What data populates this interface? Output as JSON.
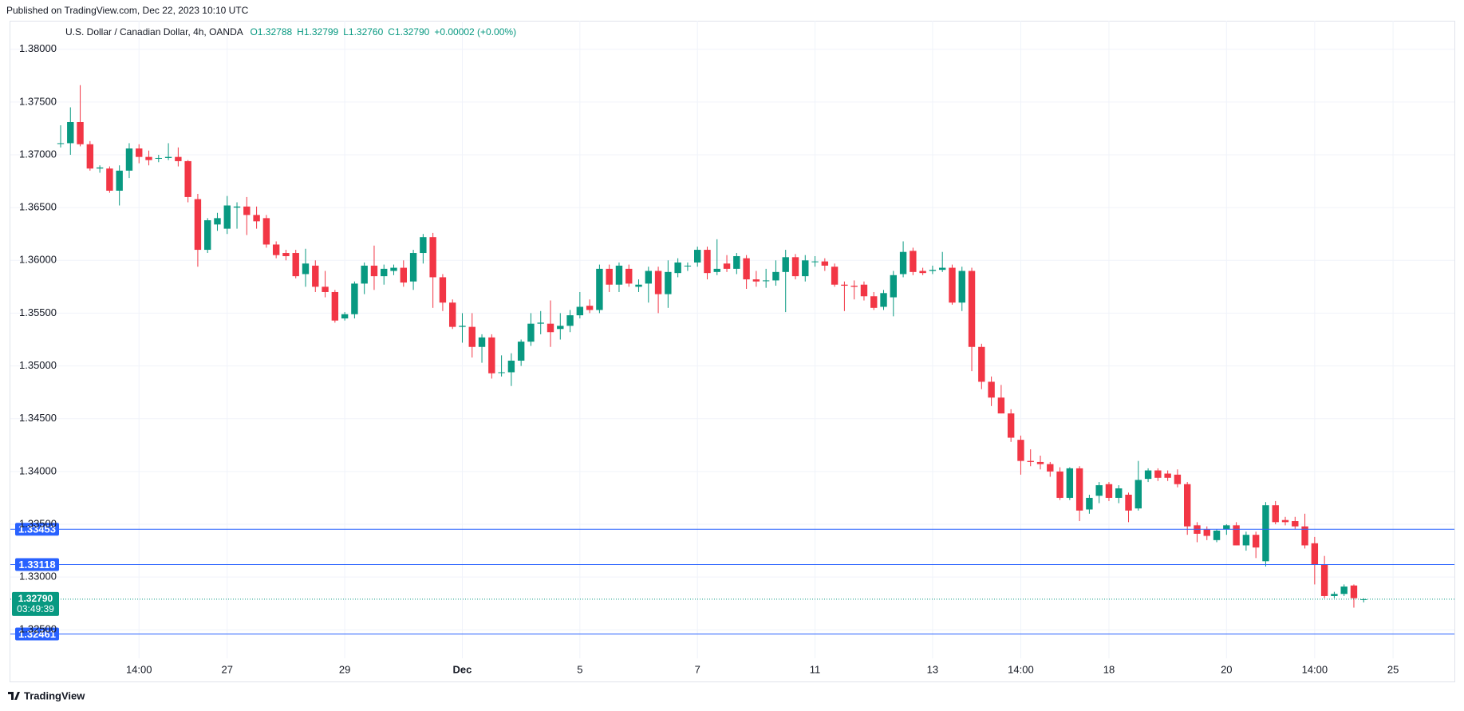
{
  "chart_data": {
    "type": "candlestick",
    "published": "Published on TradingView.com, Dec 22, 2023 10:10 UTC",
    "symbol": "U.S. Dollar / Canadian Dollar, 4h, OANDA",
    "ohlc_header": [
      "O1.32788",
      "H1.32799",
      "L1.32760",
      "C1.32790",
      "+0.00002 (+0.00%)"
    ],
    "brand": "TradingView",
    "up_color": "#089981",
    "down_color": "#f23645",
    "grid": true,
    "ylim": [
      1.3223,
      1.3827
    ],
    "yticks": [
      {
        "value": 1.38,
        "label": "1.38000"
      },
      {
        "value": 1.375,
        "label": "1.37500"
      },
      {
        "value": 1.37,
        "label": "1.37000"
      },
      {
        "value": 1.365,
        "label": "1.36500"
      },
      {
        "value": 1.36,
        "label": "1.36000"
      },
      {
        "value": 1.355,
        "label": "1.35500"
      },
      {
        "value": 1.35,
        "label": "1.35000"
      },
      {
        "value": 1.345,
        "label": "1.34500"
      },
      {
        "value": 1.34,
        "label": "1.34000"
      },
      {
        "value": 1.335,
        "label": "1.33500"
      },
      {
        "value": 1.33,
        "label": "1.33000"
      },
      {
        "value": 1.325,
        "label": "1.32500"
      }
    ],
    "price_lines": [
      {
        "value": 1.33453,
        "label": "1.33453",
        "color": "#2962ff"
      },
      {
        "value": 1.33118,
        "label": "1.33118",
        "color": "#2962ff"
      },
      {
        "value": 1.32461,
        "label": "1.32461",
        "color": "#2962ff"
      }
    ],
    "last_price": {
      "value": 1.3279,
      "label": "1.32790",
      "countdown": "03:49:39",
      "color": "#089981"
    },
    "categories": [
      null,
      null,
      null,
      null,
      null,
      null,
      null,
      null,
      "14:00",
      null,
      null,
      null,
      null,
      null,
      null,
      null,
      null,
      "27",
      null,
      null,
      null,
      null,
      null,
      null,
      null,
      null,
      null,
      null,
      null,
      "29",
      null,
      null,
      null,
      null,
      null,
      null,
      null,
      null,
      null,
      null,
      null,
      "Dec",
      null,
      null,
      null,
      null,
      null,
      null,
      null,
      null,
      null,
      null,
      null,
      "5",
      null,
      null,
      null,
      null,
      null,
      null,
      null,
      null,
      null,
      null,
      null,
      "7",
      null,
      null,
      null,
      null,
      null,
      null,
      null,
      null,
      null,
      null,
      null,
      "11",
      null,
      null,
      null,
      null,
      null,
      null,
      null,
      null,
      null,
      null,
      null,
      "13",
      null,
      null,
      null,
      null,
      null,
      null,
      null,
      null,
      "14:00",
      null,
      null,
      null,
      null,
      null,
      null,
      null,
      null,
      "18",
      null,
      null,
      null,
      null,
      null,
      null,
      null,
      null,
      null,
      null,
      null,
      "20",
      null,
      null,
      null,
      null,
      null,
      null,
      null,
      null,
      "14:00",
      null,
      null,
      null,
      null,
      null,
      null,
      null,
      "25",
      null
    ],
    "ohlc": [
      [
        1.3711,
        1.3728,
        1.3707,
        1.3711
      ],
      [
        1.3711,
        1.3745,
        1.37,
        1.3731
      ],
      [
        1.3731,
        1.3766,
        1.3708,
        1.371
      ],
      [
        1.371,
        1.3713,
        1.3685,
        1.3687
      ],
      [
        1.3687,
        1.369,
        1.3683,
        1.3688
      ],
      [
        1.3687,
        1.3689,
        1.3664,
        1.3666
      ],
      [
        1.3666,
        1.369,
        1.3652,
        1.3685
      ],
      [
        1.3685,
        1.3711,
        1.3678,
        1.3706
      ],
      [
        1.3706,
        1.371,
        1.3692,
        1.3698
      ],
      [
        1.3698,
        1.3704,
        1.369,
        1.3695
      ],
      [
        1.3697,
        1.37,
        1.3693,
        1.3697
      ],
      [
        1.3697,
        1.3711,
        1.3695,
        1.3698
      ],
      [
        1.3698,
        1.3707,
        1.3689,
        1.3694
      ],
      [
        1.3694,
        1.3695,
        1.3655,
        1.366
      ],
      [
        1.3658,
        1.3663,
        1.3594,
        1.361
      ],
      [
        1.361,
        1.364,
        1.3607,
        1.3638
      ],
      [
        1.3634,
        1.3645,
        1.3628,
        1.364
      ],
      [
        1.363,
        1.3661,
        1.3625,
        1.3652
      ],
      [
        1.365,
        1.3655,
        1.363,
        1.3651
      ],
      [
        1.3651,
        1.366,
        1.3624,
        1.3643
      ],
      [
        1.3643,
        1.3651,
        1.363,
        1.3637
      ],
      [
        1.364,
        1.3643,
        1.3612,
        1.3615
      ],
      [
        1.3615,
        1.3618,
        1.3602,
        1.3605
      ],
      [
        1.3607,
        1.361,
        1.36,
        1.3604
      ],
      [
        1.3607,
        1.361,
        1.3583,
        1.3585
      ],
      [
        1.3587,
        1.3611,
        1.3575,
        1.3597
      ],
      [
        1.3595,
        1.36,
        1.357,
        1.3575
      ],
      [
        1.3575,
        1.359,
        1.3565,
        1.357
      ],
      [
        1.357,
        1.3572,
        1.3541,
        1.3543
      ],
      [
        1.3545,
        1.3551,
        1.3543,
        1.3549
      ],
      [
        1.3549,
        1.358,
        1.3545,
        1.3578
      ],
      [
        1.3578,
        1.3598,
        1.3568,
        1.3595
      ],
      [
        1.3595,
        1.3614,
        1.3572,
        1.3585
      ],
      [
        1.3585,
        1.3596,
        1.3577,
        1.3592
      ],
      [
        1.359,
        1.3596,
        1.3586,
        1.3593
      ],
      [
        1.3593,
        1.36,
        1.3575,
        1.3579
      ],
      [
        1.358,
        1.361,
        1.3572,
        1.3607
      ],
      [
        1.3607,
        1.3625,
        1.3597,
        1.3622
      ],
      [
        1.3622,
        1.3626,
        1.3555,
        1.3584
      ],
      [
        1.3584,
        1.3587,
        1.3552,
        1.356
      ],
      [
        1.356,
        1.3563,
        1.3535,
        1.3537
      ],
      [
        1.3537,
        1.355,
        1.3522,
        1.3538
      ],
      [
        1.3537,
        1.355,
        1.3508,
        1.3518
      ],
      [
        1.3518,
        1.353,
        1.3503,
        1.3527
      ],
      [
        1.3527,
        1.353,
        1.3488,
        1.3493
      ],
      [
        1.3494,
        1.351,
        1.349,
        1.3494
      ],
      [
        1.3494,
        1.3512,
        1.3481,
        1.3505
      ],
      [
        1.3505,
        1.3525,
        1.35,
        1.3523
      ],
      [
        1.3523,
        1.355,
        1.3519,
        1.354
      ],
      [
        1.354,
        1.3552,
        1.353,
        1.3541
      ],
      [
        1.354,
        1.3562,
        1.3518,
        1.3532
      ],
      [
        1.3535,
        1.355,
        1.3525,
        1.3538
      ],
      [
        1.3538,
        1.3553,
        1.3532,
        1.3548
      ],
      [
        1.3548,
        1.357,
        1.3545,
        1.3556
      ],
      [
        1.3557,
        1.3563,
        1.355,
        1.3553
      ],
      [
        1.3553,
        1.3596,
        1.355,
        1.3592
      ],
      [
        1.3592,
        1.3596,
        1.357,
        1.3577
      ],
      [
        1.3577,
        1.3598,
        1.357,
        1.3595
      ],
      [
        1.3592,
        1.3596,
        1.3575,
        1.3578
      ],
      [
        1.3575,
        1.3582,
        1.357,
        1.3577
      ],
      [
        1.3578,
        1.3594,
        1.356,
        1.359
      ],
      [
        1.359,
        1.3594,
        1.355,
        1.3568
      ],
      [
        1.3568,
        1.36,
        1.3555,
        1.3589
      ],
      [
        1.3588,
        1.3602,
        1.3584,
        1.3598
      ],
      [
        1.3595,
        1.3598,
        1.359,
        1.3595
      ],
      [
        1.3598,
        1.3613,
        1.3594,
        1.361
      ],
      [
        1.361,
        1.3613,
        1.3582,
        1.3588
      ],
      [
        1.3589,
        1.362,
        1.3586,
        1.3592
      ],
      [
        1.3597,
        1.3605,
        1.3589,
        1.3592
      ],
      [
        1.3592,
        1.3607,
        1.3587,
        1.3604
      ],
      [
        1.3602,
        1.3605,
        1.3573,
        1.3582
      ],
      [
        1.3582,
        1.359,
        1.3575,
        1.358
      ],
      [
        1.3581,
        1.3592,
        1.3574,
        1.3581
      ],
      [
        1.3581,
        1.36,
        1.3576,
        1.3589
      ],
      [
        1.3589,
        1.361,
        1.3551,
        1.3603
      ],
      [
        1.3603,
        1.3606,
        1.3582,
        1.3585
      ],
      [
        1.3585,
        1.3605,
        1.358,
        1.36
      ],
      [
        1.3599,
        1.3604,
        1.3594,
        1.3599
      ],
      [
        1.3599,
        1.3602,
        1.359,
        1.3595
      ],
      [
        1.3594,
        1.3597,
        1.3575,
        1.3577
      ],
      [
        1.3577,
        1.358,
        1.3552,
        1.3576
      ],
      [
        1.3576,
        1.3581,
        1.3563,
        1.3575
      ],
      [
        1.3577,
        1.358,
        1.3562,
        1.3566
      ],
      [
        1.3566,
        1.357,
        1.3553,
        1.3555
      ],
      [
        1.3556,
        1.3572,
        1.3553,
        1.3569
      ],
      [
        1.3565,
        1.359,
        1.3547,
        1.3586
      ],
      [
        1.3587,
        1.3618,
        1.3584,
        1.3608
      ],
      [
        1.3609,
        1.3612,
        1.3586,
        1.3589
      ],
      [
        1.359,
        1.3593,
        1.3586,
        1.3588
      ],
      [
        1.359,
        1.3595,
        1.3587,
        1.3591
      ],
      [
        1.3591,
        1.3608,
        1.3589,
        1.3593
      ],
      [
        1.3593,
        1.3596,
        1.3558,
        1.356
      ],
      [
        1.356,
        1.3594,
        1.3552,
        1.359
      ],
      [
        1.359,
        1.3593,
        1.3495,
        1.3518
      ],
      [
        1.3518,
        1.3521,
        1.3478,
        1.3485
      ],
      [
        1.3485,
        1.349,
        1.3462,
        1.347
      ],
      [
        1.347,
        1.3482,
        1.3455,
        1.3455
      ],
      [
        1.3455,
        1.3459,
        1.3428,
        1.3432
      ],
      [
        1.343,
        1.3434,
        1.3397,
        1.341
      ],
      [
        1.341,
        1.3421,
        1.3405,
        1.3409
      ],
      [
        1.3409,
        1.3415,
        1.3402,
        1.3407
      ],
      [
        1.3407,
        1.3409,
        1.3395,
        1.34
      ],
      [
        1.34,
        1.3404,
        1.3373,
        1.3375
      ],
      [
        1.3375,
        1.3404,
        1.3373,
        1.3403
      ],
      [
        1.3403,
        1.3405,
        1.3353,
        1.3363
      ],
      [
        1.3364,
        1.3378,
        1.336,
        1.3375
      ],
      [
        1.3377,
        1.339,
        1.337,
        1.3387
      ],
      [
        1.3388,
        1.339,
        1.3372,
        1.3375
      ],
      [
        1.3375,
        1.3387,
        1.337,
        1.3384
      ],
      [
        1.3378,
        1.338,
        1.3352,
        1.3363
      ],
      [
        1.3365,
        1.341,
        1.3363,
        1.3392
      ],
      [
        1.3393,
        1.3403,
        1.339,
        1.3401
      ],
      [
        1.3401,
        1.3403,
        1.3391,
        1.3394
      ],
      [
        1.3398,
        1.3401,
        1.3391,
        1.3394
      ],
      [
        1.3397,
        1.3402,
        1.3385,
        1.3388
      ],
      [
        1.3388,
        1.339,
        1.334,
        1.3348
      ],
      [
        1.3349,
        1.3352,
        1.3333,
        1.3341
      ],
      [
        1.3345,
        1.3348,
        1.3335,
        1.3339
      ],
      [
        1.3335,
        1.3345,
        1.3333,
        1.3344
      ],
      [
        1.3345,
        1.335,
        1.334,
        1.3349
      ],
      [
        1.3349,
        1.3352,
        1.333,
        1.333
      ],
      [
        1.333,
        1.3343,
        1.3325,
        1.334
      ],
      [
        1.334,
        1.3343,
        1.3318,
        1.3328
      ],
      [
        1.3315,
        1.3371,
        1.331,
        1.3368
      ],
      [
        1.3368,
        1.3372,
        1.335,
        1.3352
      ],
      [
        1.3354,
        1.3357,
        1.3349,
        1.3352
      ],
      [
        1.3353,
        1.3357,
        1.3345,
        1.3348
      ],
      [
        1.3348,
        1.336,
        1.3327,
        1.333
      ],
      [
        1.3332,
        1.3338,
        1.3293,
        1.3312
      ],
      [
        1.3312,
        1.332,
        1.328,
        1.3282
      ],
      [
        1.3282,
        1.3286,
        1.328,
        1.3284
      ],
      [
        1.3284,
        1.3293,
        1.3282,
        1.3291
      ],
      [
        1.3292,
        1.3293,
        1.3271,
        1.328
      ],
      [
        1.32788,
        1.32799,
        1.3276,
        1.3279
      ],
      null,
      null,
      null,
      null
    ]
  }
}
